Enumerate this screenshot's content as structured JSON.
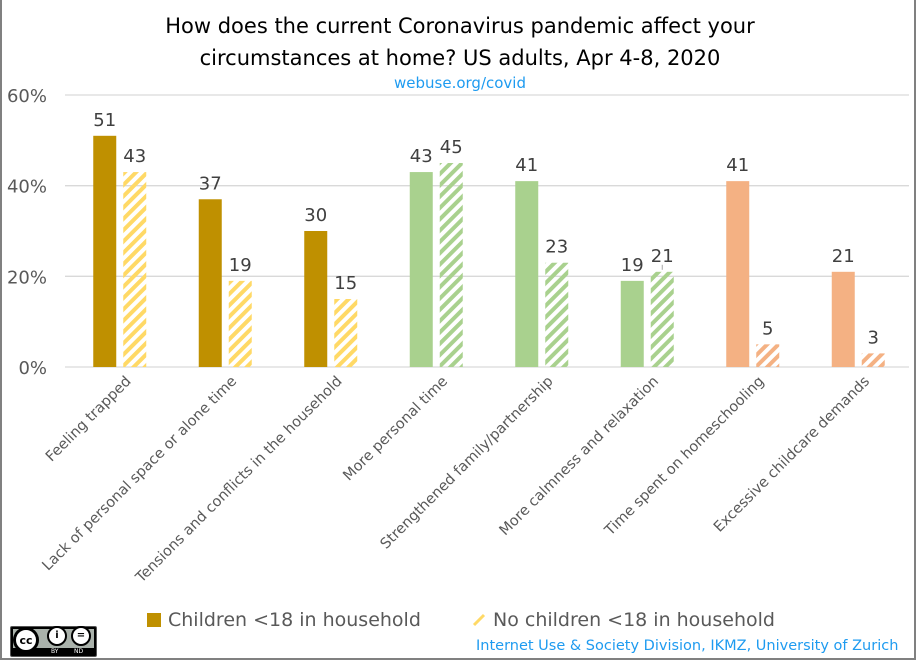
{
  "title_line1": "How does the current Coronavirus pandemic affect your",
  "title_line2": "circumstances at home? US adults, Apr 4-8, 2020",
  "subtitle": "webuse.org/covid",
  "credit": "Internet Use & Society Division, IKMZ, University of Zurich",
  "license": {
    "icon": "cc-by-nd-icon",
    "by": "BY",
    "nd": "ND"
  },
  "colors": {
    "negative_solid": "#bf9000",
    "negative_hatch": "#ffd966",
    "positive_solid": "#a9d18e",
    "positive_hatch": "#a9d18e",
    "childcare_solid": "#f4b183",
    "childcare_hatch": "#f4b183"
  },
  "chart_data": {
    "type": "bar",
    "title": "How does the current Coronavirus pandemic affect your circumstances at home? US adults, Apr 4-8, 2020",
    "subtitle": "webuse.org/covid",
    "xlabel": "",
    "ylabel": "",
    "ylim": [
      0,
      60
    ],
    "yticks": [
      0,
      20,
      40,
      60
    ],
    "ytick_labels": [
      "0%",
      "20%",
      "40%",
      "60%"
    ],
    "grid": true,
    "legend_position": "bottom",
    "categories": [
      "Feeling trapped",
      "Lack of personal space or alone time",
      "Tensions and conflicts in the household",
      "More personal time",
      "Strengthened family/partnership",
      "More calmness and relaxation",
      "Time spent on homeschooling",
      "Excessive childcare demands"
    ],
    "category_color_groups": [
      "negative",
      "negative",
      "negative",
      "positive",
      "positive",
      "positive",
      "childcare",
      "childcare"
    ],
    "series": [
      {
        "name": "Children <18 in household",
        "pattern": "solid",
        "values": [
          51,
          37,
          30,
          43,
          41,
          19,
          41,
          21
        ]
      },
      {
        "name": "No children <18 in household",
        "pattern": "hatched",
        "values": [
          43,
          19,
          15,
          45,
          23,
          21,
          5,
          3
        ]
      }
    ]
  }
}
